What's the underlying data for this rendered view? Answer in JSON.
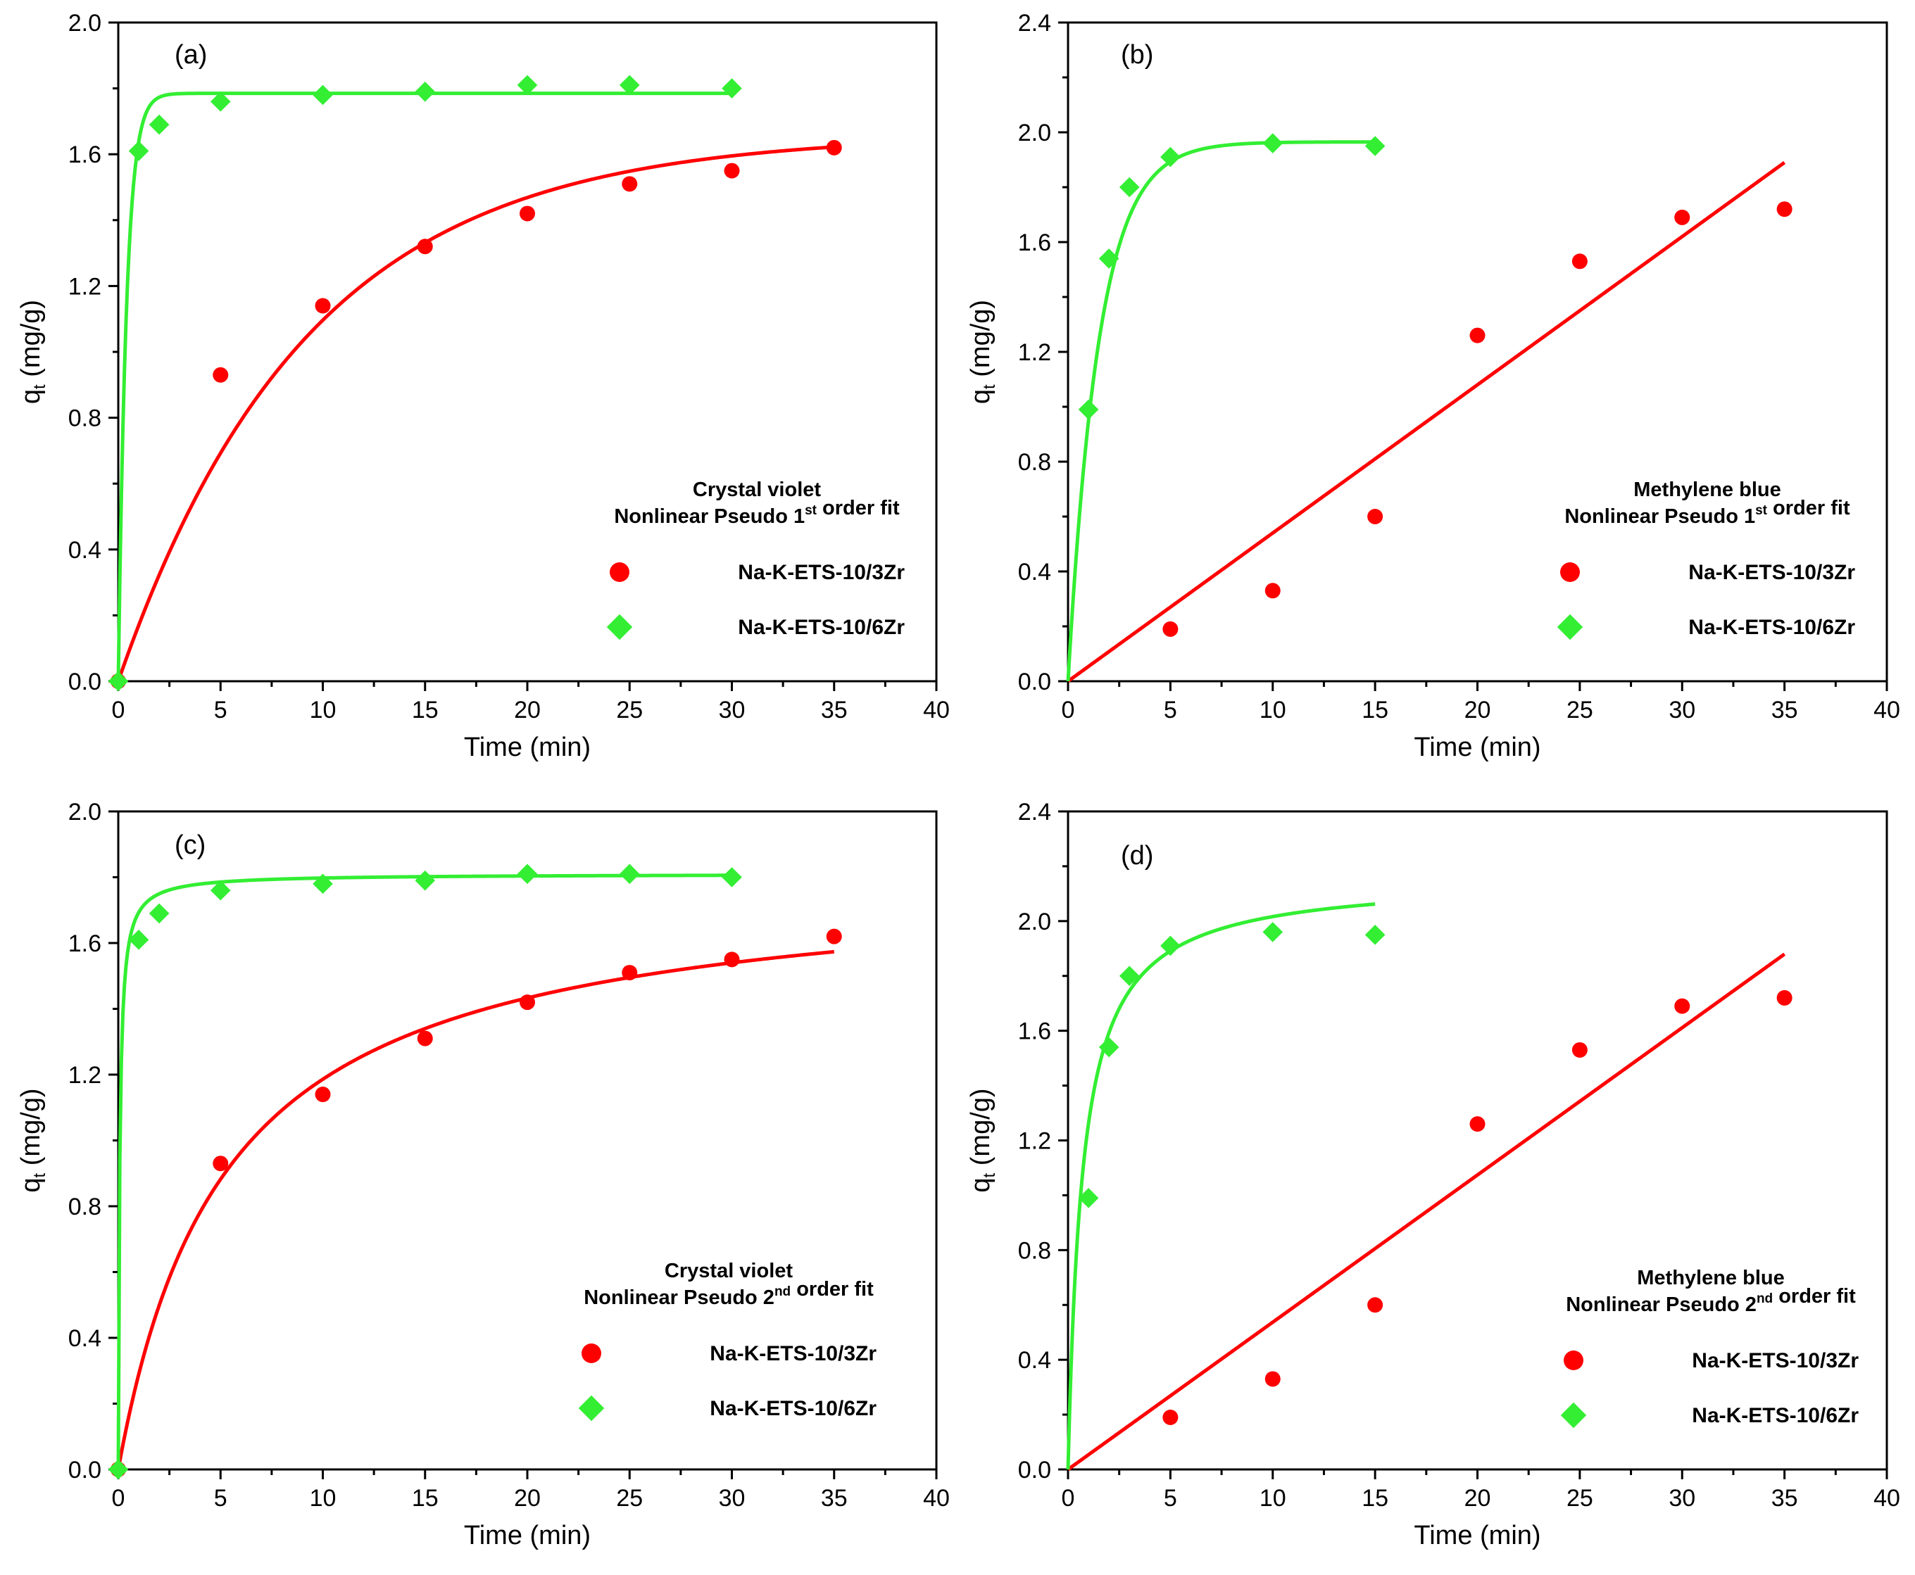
{
  "figure": {
    "colors": {
      "series_3zr": "#ff0000",
      "series_6zr": "#33ee33",
      "axis": "#000000"
    }
  },
  "chart_data": [
    {
      "panel": "(a)",
      "type": "scatter",
      "xlabel": "Time (min)",
      "ylabel_main": "q",
      "ylabel_sub": "t",
      "ylabel_unit": " (mg/g)",
      "xlim": [
        0,
        40
      ],
      "ylim": [
        0,
        2.0
      ],
      "xticks": [
        "0",
        "5",
        "10",
        "15",
        "20",
        "25",
        "30",
        "35",
        "40"
      ],
      "yticks": [
        "0.0",
        "0.4",
        "0.8",
        "1.2",
        "1.6",
        "2.0"
      ],
      "grid": false,
      "legend_title": [
        {
          "parts": [
            [
              "Crystal violet",
              ""
            ]
          ]
        },
        {
          "parts": [
            [
              "Nonlinear Pseudo 1",
              "st"
            ],
            [
              " order fit",
              ""
            ]
          ]
        }
      ],
      "legend_position": "bottom-right",
      "series": [
        {
          "name": "Na-K-ETS-10/3Zr",
          "marker": "circle",
          "color": "#ff0000",
          "x": [
            0,
            5,
            10,
            15,
            20,
            25,
            30,
            35
          ],
          "y": [
            0,
            0.93,
            1.14,
            1.32,
            1.42,
            1.51,
            1.55,
            1.62
          ],
          "fit": {
            "model": "pfo",
            "qe": 1.66,
            "k": 0.108,
            "xmax": 35
          }
        },
        {
          "name": "Na-K-ETS-10/6Zr",
          "marker": "diamond",
          "color": "#33ee33",
          "x": [
            0,
            1,
            2,
            5,
            10,
            15,
            20,
            25,
            30
          ],
          "y": [
            0,
            1.61,
            1.69,
            1.76,
            1.78,
            1.79,
            1.81,
            1.81,
            1.8
          ],
          "fit": {
            "model": "pfo",
            "qe": 1.785,
            "k": 2.5,
            "xmax": 30
          }
        }
      ]
    },
    {
      "panel": "(b)",
      "type": "scatter",
      "xlabel": "Time (min)",
      "ylabel_main": "q",
      "ylabel_sub": "t",
      "ylabel_unit": " (mg/g)",
      "xlim": [
        0,
        40
      ],
      "ylim": [
        0,
        2.4
      ],
      "xticks": [
        "0",
        "5",
        "10",
        "15",
        "20",
        "25",
        "30",
        "35",
        "40"
      ],
      "yticks": [
        "0.0",
        "0.4",
        "0.8",
        "1.2",
        "1.6",
        "2.0",
        "2.4"
      ],
      "grid": false,
      "legend_title": [
        {
          "parts": [
            [
              "Methylene blue",
              ""
            ]
          ]
        },
        {
          "parts": [
            [
              "Nonlinear Pseudo 1",
              "st"
            ],
            [
              " order fit",
              ""
            ]
          ]
        }
      ],
      "legend_position": "bottom-right",
      "series": [
        {
          "name": "Na-K-ETS-10/3Zr",
          "marker": "circle",
          "color": "#ff0000",
          "x": [
            5,
            10,
            15,
            20,
            25,
            30,
            35
          ],
          "y": [
            0.19,
            0.33,
            0.6,
            1.26,
            1.53,
            1.69,
            1.72
          ],
          "fit": {
            "model": "linear",
            "slope": 0.054,
            "xmax": 35
          }
        },
        {
          "name": "Na-K-ETS-10/6Zr",
          "marker": "diamond",
          "color": "#33ee33",
          "x": [
            1,
            2,
            3,
            5,
            10,
            15
          ],
          "y": [
            0.99,
            1.54,
            1.8,
            1.91,
            1.96,
            1.95
          ],
          "fit": {
            "model": "pfo",
            "qe": 1.965,
            "k": 0.66,
            "xmax": 15
          }
        }
      ]
    },
    {
      "panel": "(c)",
      "type": "scatter",
      "xlabel": "Time (min)",
      "ylabel_main": "q",
      "ylabel_sub": "t",
      "ylabel_unit": " (mg/g)",
      "xlim": [
        0,
        40
      ],
      "ylim": [
        0,
        2.0
      ],
      "xticks": [
        "0",
        "5",
        "10",
        "15",
        "20",
        "25",
        "30",
        "35",
        "40"
      ],
      "yticks": [
        "0.0",
        "0.4",
        "0.8",
        "1.2",
        "1.6",
        "2.0"
      ],
      "grid": false,
      "legend_title": [
        {
          "parts": [
            [
              "Crystal violet",
              ""
            ]
          ]
        },
        {
          "parts": [
            [
              "Nonlinear Pseudo 2",
              "nd"
            ],
            [
              " order fit",
              ""
            ]
          ]
        }
      ],
      "legend_position": "bottom-right",
      "series": [
        {
          "name": "Na-K-ETS-10/3Zr",
          "marker": "circle",
          "color": "#ff0000",
          "x": [
            0,
            5,
            10,
            15,
            20,
            25,
            30,
            35
          ],
          "y": [
            0,
            0.93,
            1.14,
            1.31,
            1.42,
            1.51,
            1.55,
            1.62
          ],
          "fit": {
            "model": "pso",
            "qe": 1.81,
            "k": 0.105,
            "xmax": 35
          }
        },
        {
          "name": "Na-K-ETS-10/6Zr",
          "marker": "diamond",
          "color": "#33ee33",
          "x": [
            0,
            1,
            2,
            5,
            10,
            15,
            20,
            25,
            30
          ],
          "y": [
            0,
            1.61,
            1.69,
            1.76,
            1.78,
            1.79,
            1.81,
            1.81,
            1.8
          ],
          "fit": {
            "model": "pso",
            "qe": 1.81,
            "k": 8.0,
            "xmax": 30
          }
        }
      ]
    },
    {
      "panel": "(d)",
      "type": "scatter",
      "xlabel": "Time (min)",
      "ylabel_main": "q",
      "ylabel_sub": "t",
      "ylabel_unit": " (mg/g)",
      "xlim": [
        0,
        40
      ],
      "ylim": [
        0,
        2.4
      ],
      "xticks": [
        "0",
        "5",
        "10",
        "15",
        "20",
        "25",
        "30",
        "35",
        "40"
      ],
      "yticks": [
        "0.0",
        "0.4",
        "0.8",
        "1.2",
        "1.6",
        "2.0",
        "2.4"
      ],
      "grid": false,
      "legend_title": [
        {
          "parts": [
            [
              "Methylene blue",
              ""
            ]
          ]
        },
        {
          "parts": [
            [
              "Nonlinear Pseudo 2",
              "nd"
            ],
            [
              " order fit",
              ""
            ]
          ]
        }
      ],
      "legend_position": "bottom-right",
      "series": [
        {
          "name": "Na-K-ETS-10/3Zr",
          "marker": "circle",
          "color": "#ff0000",
          "x": [
            5,
            10,
            15,
            20,
            25,
            30,
            35
          ],
          "y": [
            0.19,
            0.33,
            0.6,
            1.26,
            1.53,
            1.69,
            1.72
          ],
          "fit": {
            "model": "linear",
            "slope": 0.0537,
            "xmax": 35
          }
        },
        {
          "name": "Na-K-ETS-10/6Zr",
          "marker": "diamond",
          "color": "#33ee33",
          "x": [
            1,
            2,
            3,
            5,
            10,
            15
          ],
          "y": [
            0.99,
            1.54,
            1.8,
            1.91,
            1.96,
            1.95
          ],
          "fit": {
            "model": "pso",
            "qe": 2.16,
            "k": 0.65,
            "xmax": 15
          }
        }
      ]
    }
  ]
}
